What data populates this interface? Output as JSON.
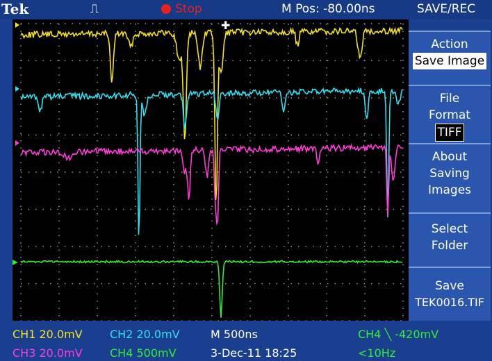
{
  "header": {
    "brand": "Tek",
    "status": "Stop",
    "position": "M Pos: -80.00ns",
    "menu_title": "SAVE/REC"
  },
  "menu": [
    {
      "label": "Action",
      "value": "Save Image"
    },
    {
      "label": "File Format",
      "value": "TIFF"
    },
    {
      "label": "About Saving Images"
    },
    {
      "label": "Select Folder"
    },
    {
      "label": "Save",
      "value": "TEK0016.TIF"
    }
  ],
  "footer": {
    "row1": [
      "CH1 20.0mV",
      "CH2 20.0mV",
      "M 500ns",
      "CH4 ╲ -420mV"
    ],
    "row2": [
      "CH3 20.0mV",
      "CH4 500mV",
      "3-Dec-11 18:25",
      "<10Hz"
    ]
  }
}
